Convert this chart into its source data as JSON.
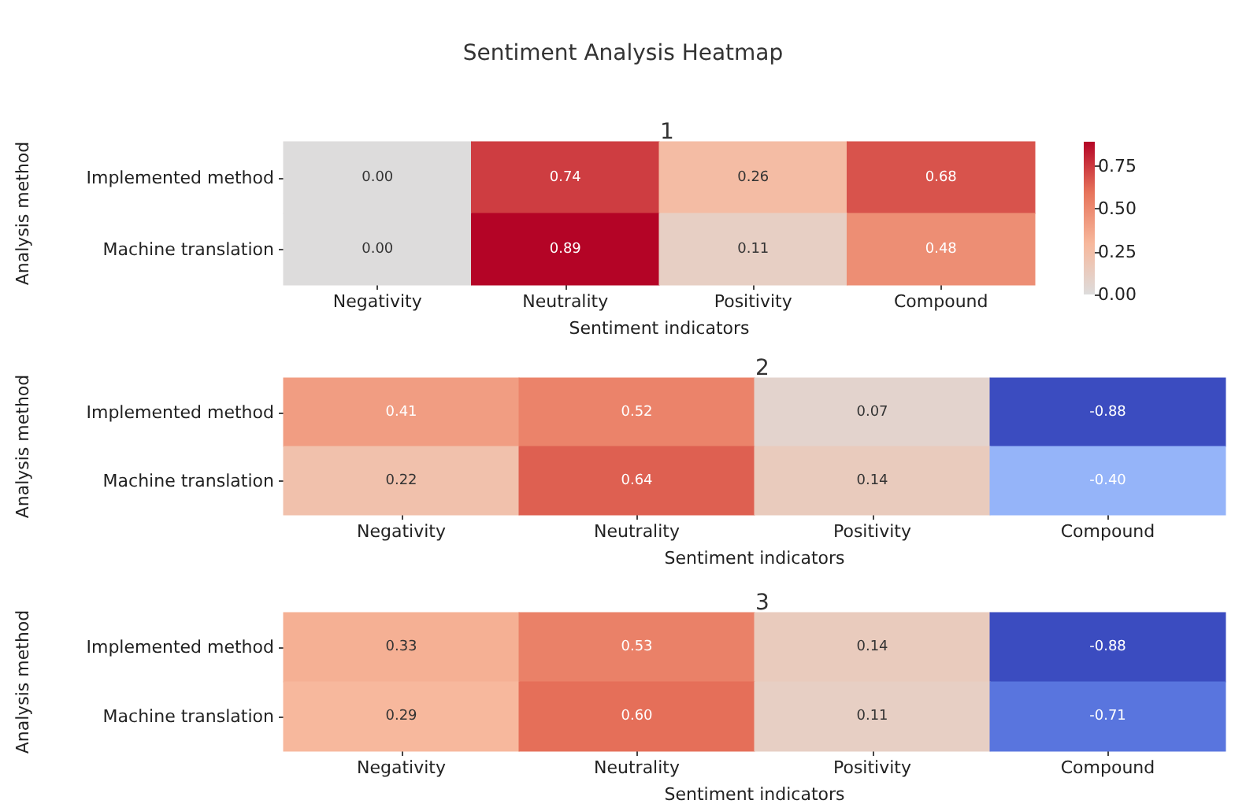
{
  "chart_data": [
    {
      "type": "heatmap",
      "title": "Sentiment Analysis Heatmap",
      "subtitle": "1",
      "xlabel": "Sentiment indicators",
      "ylabel": "Analysis method",
      "categories": [
        "Negativity",
        "Neutrality",
        "Positivity",
        "Compound"
      ],
      "y_categories": [
        "Implemented method",
        "Machine translation"
      ],
      "cells": [
        [
          0.0,
          0.74,
          0.26,
          0.68
        ],
        [
          0.0,
          0.89,
          0.11,
          0.48
        ]
      ],
      "cell_labels": [
        [
          "0.00",
          "0.74",
          "0.26",
          "0.68"
        ],
        [
          "0.00",
          "0.89",
          "0.11",
          "0.48"
        ]
      ],
      "clim": [
        0,
        0.89
      ],
      "cticks": [
        {
          "value": 0,
          "label": "0.00"
        },
        {
          "value": 0.25,
          "label": "0.25"
        },
        {
          "value": 0.5,
          "label": "0.50"
        },
        {
          "value": 0.75,
          "label": "0.75"
        }
      ],
      "data_labels": true
    },
    {
      "type": "heatmap",
      "title": "2",
      "xlabel": "Sentiment indicators",
      "ylabel": "Analysis method",
      "categories": [
        "Negativity",
        "Neutrality",
        "Positivity",
        "Compound"
      ],
      "y_categories": [
        "Implemented method",
        "Machine translation"
      ],
      "cells": [
        [
          0.41,
          0.52,
          0.07,
          -0.88
        ],
        [
          0.22,
          0.64,
          0.14,
          -0.4
        ]
      ],
      "cell_labels": [
        [
          "0.41",
          "0.52",
          "0.07",
          "-0.88"
        ],
        [
          "0.22",
          "0.64",
          "0.14",
          "-0.40"
        ]
      ],
      "data_labels": true
    },
    {
      "type": "heatmap",
      "title": "3",
      "xlabel": "Sentiment indicators",
      "ylabel": "Analysis method",
      "categories": [
        "Negativity",
        "Neutrality",
        "Positivity",
        "Compound"
      ],
      "y_categories": [
        "Implemented method",
        "Machine translation"
      ],
      "cells": [
        [
          0.33,
          0.53,
          0.14,
          -0.88
        ],
        [
          0.29,
          0.6,
          0.11,
          -0.71
        ]
      ],
      "cell_labels": [
        [
          "0.33",
          "0.53",
          "0.14",
          "-0.88"
        ],
        [
          "0.29",
          "0.60",
          "0.11",
          "-0.71"
        ]
      ],
      "data_labels": true
    }
  ]
}
